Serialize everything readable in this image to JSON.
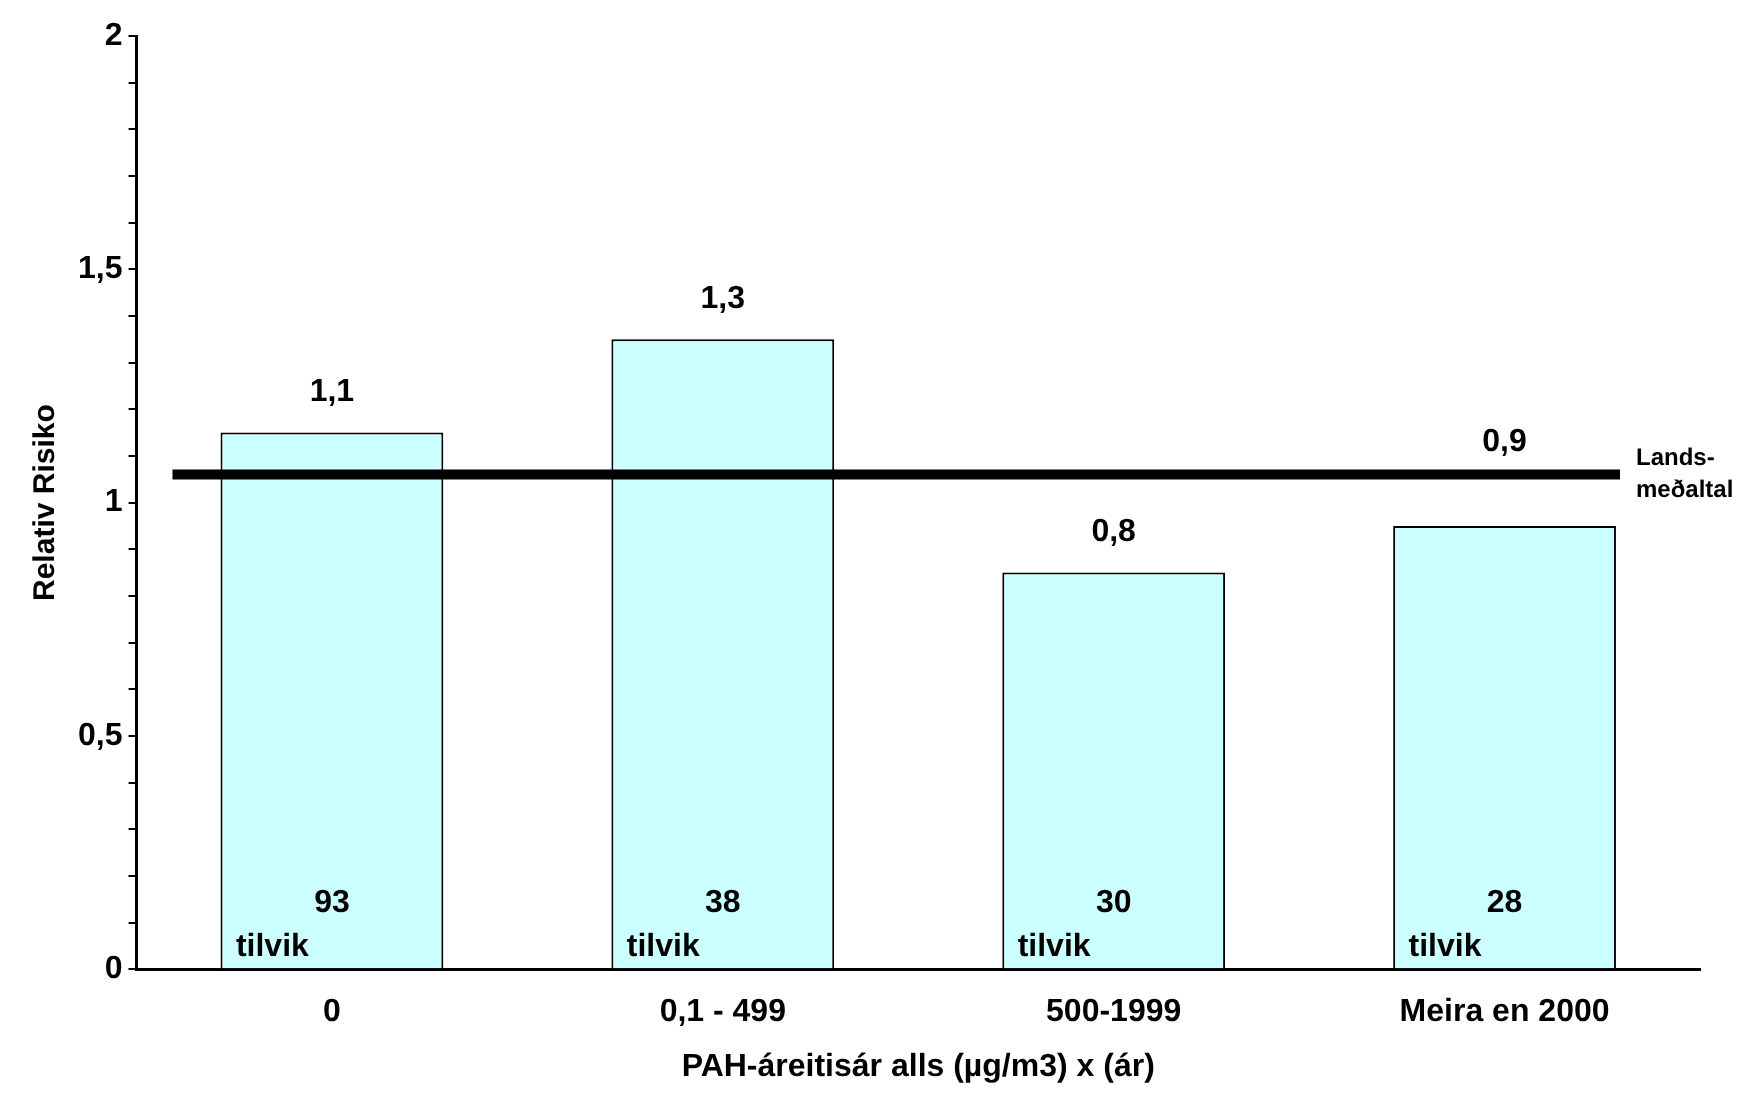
{
  "chart_data": {
    "type": "bar",
    "xlabel": "PAH-áreitisár alls (µg/m3) x (ár)",
    "ylabel": "Relativ Risiko",
    "categories": [
      "0",
      "0,1 - 499",
      "500-1999",
      "Meira en 2000"
    ],
    "values": [
      1.15,
      1.35,
      0.85,
      0.95
    ],
    "color": "#ccffff",
    "value_labels": [
      "1,1",
      "1,3",
      "0,8",
      "0,9"
    ],
    "ylim": [
      0,
      2
    ],
    "yticks": [
      0,
      {
        "value": 0.1,
        "label": null
      },
      {
        "value": 0.2,
        "label": null
      },
      {
        "value": 0.3,
        "label": null
      },
      {
        "value": 0.4,
        "label": null
      },
      {
        "value": 0.5,
        "label": "0,5"
      },
      {
        "value": 0.6,
        "label": null
      },
      {
        "value": 0.7,
        "label": null
      },
      {
        "value": 0.8,
        "label": null
      },
      {
        "value": 0.9,
        "label": null
      },
      1,
      {
        "value": 1.1,
        "label": null
      },
      {
        "value": 1.2,
        "label": null
      },
      {
        "value": 1.3,
        "label": null
      },
      {
        "value": 1.4,
        "label": null
      },
      {
        "value": 1.5,
        "label": "1,5"
      },
      {
        "value": 1.6,
        "label": null
      },
      {
        "value": 1.7,
        "label": null
      },
      {
        "value": 1.8,
        "label": null
      },
      {
        "value": 1.9,
        "label": null
      },
      2
    ],
    "ref_lines": [
      {
        "axis": "y",
        "value": 1.06,
        "label": "Lands-\nmeðaltal",
        "color": "#000000"
      }
    ],
    "annotations": [
      "93\ntilvik",
      "38\ntilvik",
      "30\ntilvik",
      "28\ntilvik"
    ],
    "grid": false,
    "legend": false
  }
}
